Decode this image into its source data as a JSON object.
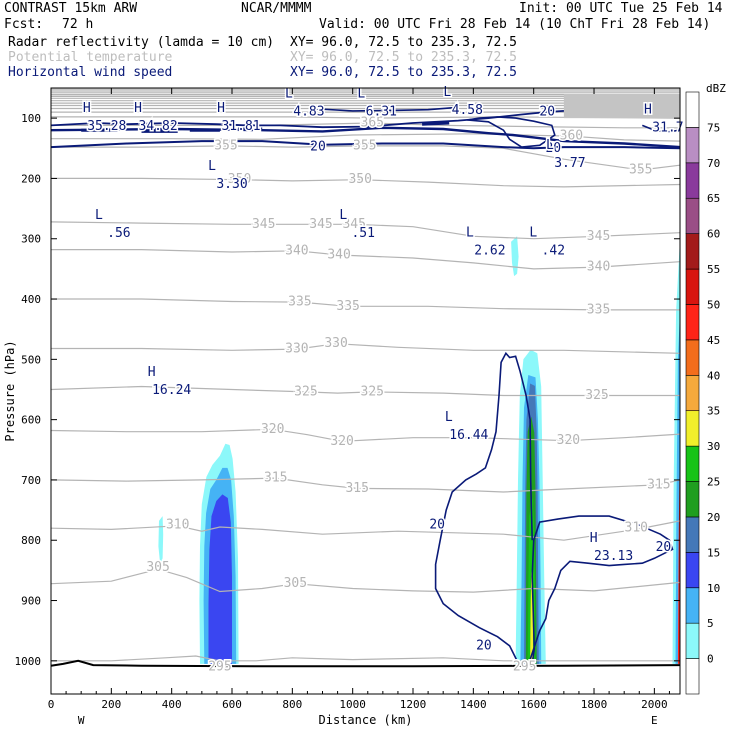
{
  "header": {
    "model": "CONTRAST 15km ARW",
    "org": "NCAR/MMMM",
    "init": "Init: 00 UTC Tue 25 Feb 14",
    "fcst_label": "Fcst:",
    "fcst_value": "72 h",
    "valid": "Valid: 00 UTC Fri 28 Feb 14 (10 ChT Fri 28 Feb 14)",
    "fields": [
      {
        "name": "Radar reflectivity (lamda = 10 cm)",
        "xy": "XY=  96.0, 72.5 to 235.3, 72.5"
      },
      {
        "name": "Potential temperature",
        "xy": "XY=  96.0, 72.5 to 235.3, 72.5"
      },
      {
        "name": "Horizontal wind speed",
        "xy": "XY=  96.0, 72.5 to 235.3, 72.5"
      }
    ]
  },
  "colors": {
    "theta": "#b4b4b4",
    "wind": "#0a1a78",
    "ground": "#000000"
  },
  "chart_data": {
    "type": "heatmap",
    "title": "",
    "xlabel": "Distance (km)",
    "ylabel": "Pressure (hPa)",
    "xlim": [
      0,
      2085
    ],
    "ylim": [
      1055,
      50
    ],
    "x_ticks": [
      0,
      200,
      400,
      600,
      800,
      1000,
      1200,
      1400,
      1600,
      1800,
      2000
    ],
    "y_ticks": [
      100,
      200,
      300,
      400,
      500,
      600,
      700,
      800,
      900,
      1000
    ],
    "x_end_labels": {
      "left": "W",
      "right": "E"
    },
    "colorbar": {
      "unit": "dBZ",
      "levels": [
        0,
        5,
        10,
        15,
        20,
        25,
        30,
        35,
        40,
        45,
        50,
        55,
        60,
        65,
        70,
        75
      ],
      "colors": [
        "#ffffff",
        "#8cf8fa",
        "#45b3f5",
        "#3a46f1",
        "#4478b8",
        "#1f9e1f",
        "#17c317",
        "#f1ef2b",
        "#f5a93c",
        "#f36d1c",
        "#ff2418",
        "#d8150f",
        "#a31b1b",
        "#9a4e86",
        "#8a3a9c",
        "#b98ec3",
        "#ffffff"
      ]
    },
    "theta_contours": [
      {
        "value": 295,
        "labels": [
          {
            "x": 560,
            "y": 1010
          },
          {
            "x": 1570,
            "y": 1010
          }
        ]
      },
      {
        "value": 305,
        "labels": [
          {
            "x": 355,
            "y": 845
          },
          {
            "x": 810,
            "y": 872
          }
        ]
      },
      {
        "value": 310,
        "labels": [
          {
            "x": 420,
            "y": 775
          },
          {
            "x": 1940,
            "y": 780
          }
        ]
      },
      {
        "value": 315,
        "labels": [
          {
            "x": 745,
            "y": 697
          },
          {
            "x": 1015,
            "y": 714
          },
          {
            "x": 2015,
            "y": 708
          }
        ]
      },
      {
        "value": 320,
        "labels": [
          {
            "x": 735,
            "y": 616
          },
          {
            "x": 965,
            "y": 636
          },
          {
            "x": 1715,
            "y": 635
          }
        ]
      },
      {
        "value": 325,
        "labels": [
          {
            "x": 845,
            "y": 554
          },
          {
            "x": 1065,
            "y": 554
          },
          {
            "x": 1810,
            "y": 560
          }
        ]
      },
      {
        "value": 330,
        "labels": [
          {
            "x": 815,
            "y": 483
          },
          {
            "x": 945,
            "y": 474
          }
        ]
      },
      {
        "value": 335,
        "labels": [
          {
            "x": 825,
            "y": 405
          },
          {
            "x": 985,
            "y": 412
          },
          {
            "x": 1815,
            "y": 418
          }
        ]
      },
      {
        "value": 340,
        "labels": [
          {
            "x": 815,
            "y": 320
          },
          {
            "x": 955,
            "y": 327
          },
          {
            "x": 1815,
            "y": 347
          }
        ]
      },
      {
        "value": 345,
        "labels": [
          {
            "x": 705,
            "y": 276
          },
          {
            "x": 895,
            "y": 276
          },
          {
            "x": 1005,
            "y": 276
          },
          {
            "x": 1815,
            "y": 296
          }
        ]
      },
      {
        "value": 350,
        "labels": [
          {
            "x": 625,
            "y": 202
          },
          {
            "x": 1025,
            "y": 202
          }
        ]
      },
      {
        "value": 355,
        "labels": [
          {
            "x": 580,
            "y": 146
          },
          {
            "x": 1040,
            "y": 146
          },
          {
            "x": 1955,
            "y": 186
          }
        ]
      },
      {
        "value": 360,
        "labels": [
          {
            "x": 1725,
            "y": 130
          }
        ]
      },
      {
        "value": 365,
        "labels": [
          {
            "x": 1065,
            "y": 108
          }
        ]
      }
    ],
    "wind_contours": [
      {
        "value": 20,
        "labels": [
          {
            "x": 885,
            "y": 148
          },
          {
            "x": 1665,
            "y": 150
          },
          {
            "x": 1645,
            "y": 90
          },
          {
            "x": 1280,
            "y": 775
          },
          {
            "x": 1435,
            "y": 975
          },
          {
            "x": 2030,
            "y": 812
          }
        ]
      }
    ],
    "extrema": [
      {
        "kind": "H",
        "value": "35.28",
        "x": 185,
        "y": 104
      },
      {
        "kind": "H",
        "value": "34.82",
        "x": 355,
        "y": 104
      },
      {
        "kind": "H",
        "value": "31.81",
        "x": 630,
        "y": 104
      },
      {
        "kind": "L",
        "value": "4.83",
        "x": 855,
        "y": 80
      },
      {
        "kind": "L",
        "value": "6.31",
        "x": 1095,
        "y": 80
      },
      {
        "kind": "L",
        "value": "4.58",
        "x": 1380,
        "y": 77
      },
      {
        "kind": "H",
        "value": "31.7",
        "x": 2045,
        "y": 106
      },
      {
        "kind": "L",
        "value": "3.77",
        "x": 1720,
        "y": 165
      },
      {
        "kind": "L",
        "value": "3.30",
        "x": 600,
        "y": 200
      },
      {
        "kind": "L",
        "value": ".56",
        "x": 225,
        "y": 281
      },
      {
        "kind": "L",
        "value": ".51",
        "x": 1035,
        "y": 281
      },
      {
        "kind": "L",
        "value": "2.62",
        "x": 1455,
        "y": 310
      },
      {
        "kind": "L",
        "value": ".42",
        "x": 1665,
        "y": 310
      },
      {
        "kind": "H",
        "value": "16.24",
        "x": 400,
        "y": 542
      },
      {
        "kind": "L",
        "value": "16.44",
        "x": 1385,
        "y": 616
      },
      {
        "kind": "H",
        "value": "23.13",
        "x": 1865,
        "y": 817
      }
    ]
  }
}
